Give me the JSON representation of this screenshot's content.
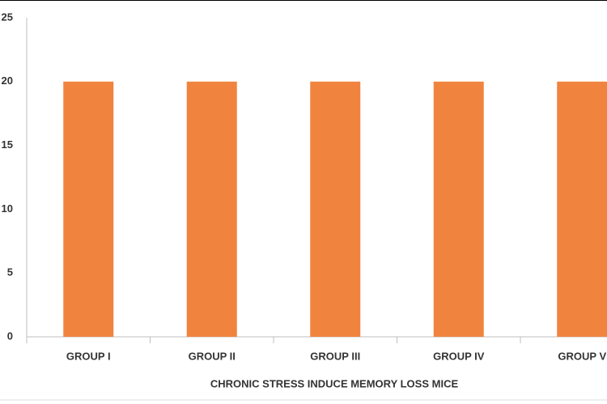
{
  "chart_data": {
    "type": "bar",
    "x_label": "CHRONIC STRESS  INDUCE MEMORY LOSS MICE",
    "categories": [
      "GROUP I",
      "GROUP II",
      "GROUP III",
      "GROUP IV",
      "GROUP V"
    ],
    "values": [
      20,
      20,
      20,
      20,
      20
    ],
    "color": "#f0843f",
    "ylim": [
      0,
      25
    ],
    "yticks": [
      0,
      5,
      10,
      15,
      20,
      25
    ],
    "grid": false
  }
}
